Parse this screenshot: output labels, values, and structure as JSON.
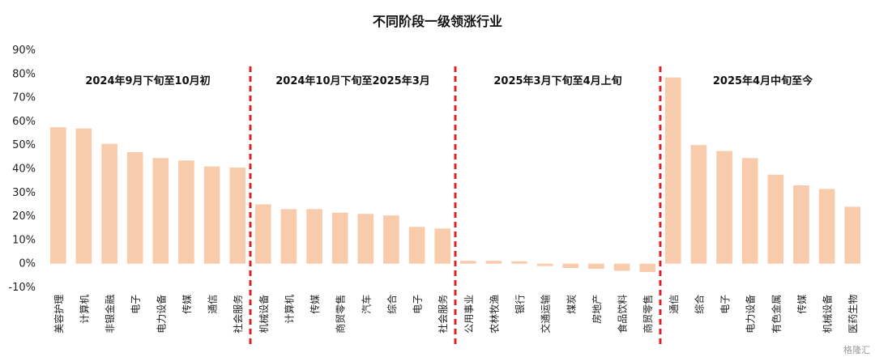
{
  "chart_data": {
    "type": "bar",
    "title": "不同阶段一级领涨行业",
    "xlabel": "",
    "ylabel": "",
    "ylim": [
      -10,
      90
    ],
    "yticks": [
      "-10%",
      "0%",
      "10%",
      "20%",
      "30%",
      "40%",
      "50%",
      "60%",
      "70%",
      "80%",
      "90%"
    ],
    "bar_color": "#f8cbad",
    "divider_color": "#e02020",
    "grid": false,
    "legend": false,
    "periods": [
      {
        "label": "2024年9月下旬至10月初",
        "categories": [
          "美容护理",
          "计算机",
          "非银金融",
          "电子",
          "电力设备",
          "传媒",
          "通信",
          "社会服务"
        ],
        "values": [
          57.5,
          57,
          50.5,
          47,
          44.5,
          43.5,
          41,
          40.5
        ]
      },
      {
        "label": "2024年10月下旬至2025年3月",
        "categories": [
          "机械设备",
          "计算机",
          "传媒",
          "商贸零售",
          "汽车",
          "综合",
          "电子",
          "社会服务"
        ],
        "values": [
          25,
          23,
          23,
          21.5,
          21,
          20.3,
          15.5,
          14.8
        ]
      },
      {
        "label": "2025年3月下旬至4月上旬",
        "categories": [
          "公用事业",
          "农林牧渔",
          "银行",
          "交通运输",
          "煤炭",
          "房地产",
          "食品饮料",
          "商贸零售"
        ],
        "values": [
          1.2,
          1.2,
          1,
          -1,
          -1.8,
          -2.2,
          -3,
          -3.5
        ]
      },
      {
        "label": "2025年4月中旬至今",
        "categories": [
          "通信",
          "综合",
          "电子",
          "电力设备",
          "有色金属",
          "传媒",
          "机械设备",
          "医药生物"
        ],
        "values": [
          78.5,
          50,
          47.5,
          44.5,
          37.5,
          33,
          31.5,
          24
        ]
      }
    ]
  },
  "watermark": "格隆汇"
}
